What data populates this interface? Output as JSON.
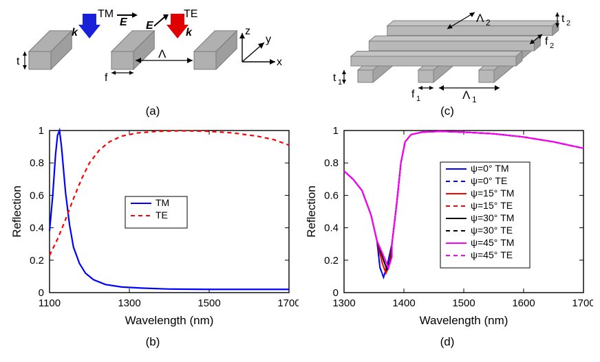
{
  "panel_a": {
    "caption": "(a)",
    "labels": {
      "TM": "TM",
      "TE": "TE",
      "E1": "E",
      "E2": "E",
      "k1": "k",
      "k2": "k",
      "Lambda": "Λ",
      "t": "t",
      "f": "f",
      "z": "z",
      "y": "y",
      "x": "x"
    },
    "colors": {
      "bar": "#b0b0b0",
      "bar_edge": "#7a7a7a",
      "arrow_blue": "#1820d8",
      "arrow_red": "#e00000",
      "text": "#000000"
    }
  },
  "panel_c": {
    "caption": "(c)",
    "labels": {
      "Lambda1": "Λ",
      "Lambda1_sub": "1",
      "Lambda2": "Λ",
      "Lambda2_sub": "2",
      "t1": "t",
      "t1_sub": "1",
      "t2": "t",
      "t2_sub": "2",
      "f1": "f",
      "f1_sub": "1",
      "f2": "f",
      "f2_sub": "2"
    },
    "colors": {
      "bar": "#b8b8b8",
      "bar_edge": "#808080",
      "text": "#000000"
    }
  },
  "panel_b": {
    "caption": "(b)",
    "xlabel": "Wavelength (nm)",
    "ylabel": "Reflection",
    "xlim": [
      1100,
      1700
    ],
    "ylim": [
      0,
      1
    ],
    "xticks": [
      1100,
      1300,
      1500,
      1700
    ],
    "yticks": [
      0,
      0.2,
      0.4,
      0.6,
      0.8,
      1
    ],
    "series": [
      {
        "name": "TM",
        "color": "#0000ff",
        "dash": "",
        "width": 2.2,
        "points": [
          [
            1100,
            0.38
          ],
          [
            1108,
            0.6
          ],
          [
            1115,
            0.85
          ],
          [
            1120,
            0.97
          ],
          [
            1125,
            1.0
          ],
          [
            1130,
            0.9
          ],
          [
            1140,
            0.62
          ],
          [
            1150,
            0.42
          ],
          [
            1160,
            0.28
          ],
          [
            1175,
            0.18
          ],
          [
            1190,
            0.12
          ],
          [
            1210,
            0.08
          ],
          [
            1240,
            0.05
          ],
          [
            1280,
            0.035
          ],
          [
            1330,
            0.028
          ],
          [
            1400,
            0.022
          ],
          [
            1500,
            0.02
          ],
          [
            1600,
            0.02
          ],
          [
            1700,
            0.02
          ]
        ]
      },
      {
        "name": "TE",
        "color": "#ff0000",
        "dash": "6,5",
        "width": 2.2,
        "points": [
          [
            1100,
            0.23
          ],
          [
            1120,
            0.33
          ],
          [
            1140,
            0.45
          ],
          [
            1160,
            0.58
          ],
          [
            1180,
            0.7
          ],
          [
            1200,
            0.8
          ],
          [
            1225,
            0.88
          ],
          [
            1250,
            0.93
          ],
          [
            1280,
            0.965
          ],
          [
            1320,
            0.985
          ],
          [
            1370,
            0.995
          ],
          [
            1430,
            0.998
          ],
          [
            1500,
            0.995
          ],
          [
            1560,
            0.985
          ],
          [
            1620,
            0.965
          ],
          [
            1660,
            0.945
          ],
          [
            1700,
            0.91
          ]
        ]
      }
    ],
    "legend": [
      "TM",
      "TE"
    ],
    "axis_color": "#000000",
    "tick_color": "#000000",
    "label_fontsize": 17,
    "tick_fontsize": 15
  },
  "panel_d": {
    "caption": "(d)",
    "xlabel": "Wavelength (nm)",
    "ylabel": "Reflection",
    "xlim": [
      1300,
      1700
    ],
    "ylim": [
      0,
      1
    ],
    "xticks": [
      1300,
      1400,
      1500,
      1600,
      1700
    ],
    "yticks": [
      0,
      0.2,
      0.4,
      0.6,
      0.8,
      1
    ],
    "curve_colors": {
      "psi0": "#0000ff",
      "psi15": "#ff0000",
      "psi30": "#000000",
      "psi45": "#ff00ff"
    },
    "tm_dash": "",
    "te_dash": "6,5",
    "line_width": 2,
    "dip_variants": [
      {
        "key": "psi0",
        "dip_x": 1366,
        "dip_y": 0.095
      },
      {
        "key": "psi15",
        "dip_x": 1370,
        "dip_y": 0.12
      },
      {
        "key": "psi30",
        "dip_x": 1372,
        "dip_y": 0.14
      },
      {
        "key": "psi45",
        "dip_x": 1374,
        "dip_y": 0.15
      }
    ],
    "baseline_points": [
      [
        1300,
        0.75
      ],
      [
        1315,
        0.7
      ],
      [
        1330,
        0.63
      ],
      [
        1345,
        0.48
      ],
      [
        1355,
        0.32
      ],
      [
        1362,
        0.18
      ],
      [
        1380,
        0.3
      ],
      [
        1388,
        0.55
      ],
      [
        1395,
        0.8
      ],
      [
        1402,
        0.93
      ],
      [
        1412,
        0.975
      ],
      [
        1430,
        0.99
      ],
      [
        1460,
        0.995
      ],
      [
        1500,
        0.99
      ],
      [
        1550,
        0.98
      ],
      [
        1600,
        0.96
      ],
      [
        1650,
        0.93
      ],
      [
        1700,
        0.89
      ]
    ],
    "legend": [
      {
        "label": "ψ=0° TM",
        "color": "#0000ff",
        "dash": ""
      },
      {
        "label": "ψ=0° TE",
        "color": "#0000ff",
        "dash": "6,5"
      },
      {
        "label": "ψ=15° TM",
        "color": "#ff0000",
        "dash": ""
      },
      {
        "label": "ψ=15° TE",
        "color": "#ff0000",
        "dash": "6,5"
      },
      {
        "label": "ψ=30° TM",
        "color": "#000000",
        "dash": ""
      },
      {
        "label": "ψ=30° TE",
        "color": "#000000",
        "dash": "6,5"
      },
      {
        "label": "ψ=45° TM",
        "color": "#ff00ff",
        "dash": ""
      },
      {
        "label": "ψ=45° TE",
        "color": "#ff00ff",
        "dash": "6,5"
      }
    ],
    "axis_color": "#000000",
    "label_fontsize": 17,
    "tick_fontsize": 15
  }
}
